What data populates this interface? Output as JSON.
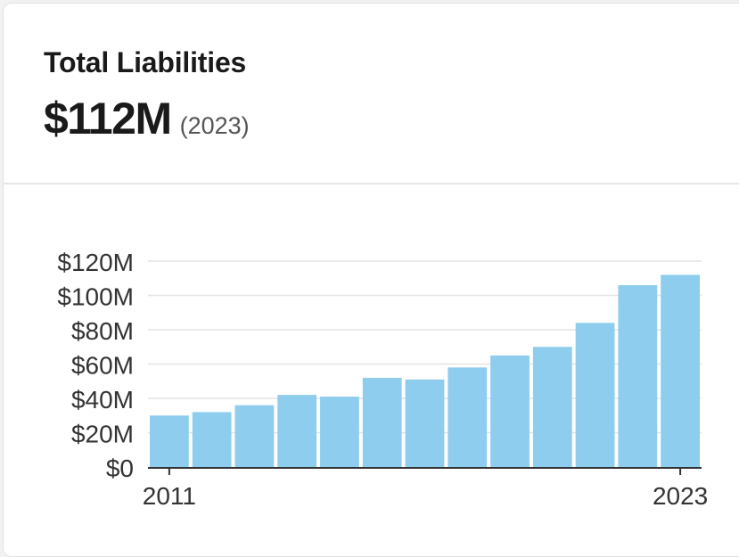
{
  "card": {
    "title": "Total Liabilities",
    "value": "$112M",
    "year": "(2023)"
  },
  "colors": {
    "bar": "#8ecdee",
    "gridline": "#e4e4e4",
    "axis": "#333333",
    "text": "#1a1a1a",
    "muted": "#555555"
  },
  "chart_data": {
    "type": "bar",
    "title": "Total Liabilities",
    "xlabel": "",
    "ylabel": "",
    "categories": [
      "2011",
      "2012",
      "2013",
      "2014",
      "2015",
      "2016",
      "2017",
      "2018",
      "2019",
      "2020",
      "2021",
      "2022",
      "2023"
    ],
    "values": [
      30,
      32,
      36,
      42,
      41,
      52,
      51,
      58,
      65,
      70,
      84,
      106,
      112
    ],
    "unit": "$M",
    "ylim": [
      0,
      120
    ],
    "y_ticks": [
      "$0",
      "$20M",
      "$40M",
      "$60M",
      "$80M",
      "$100M",
      "$120M"
    ],
    "x_tick_labels": [
      "2011",
      "2023"
    ],
    "grid": true,
    "legend": "none"
  }
}
